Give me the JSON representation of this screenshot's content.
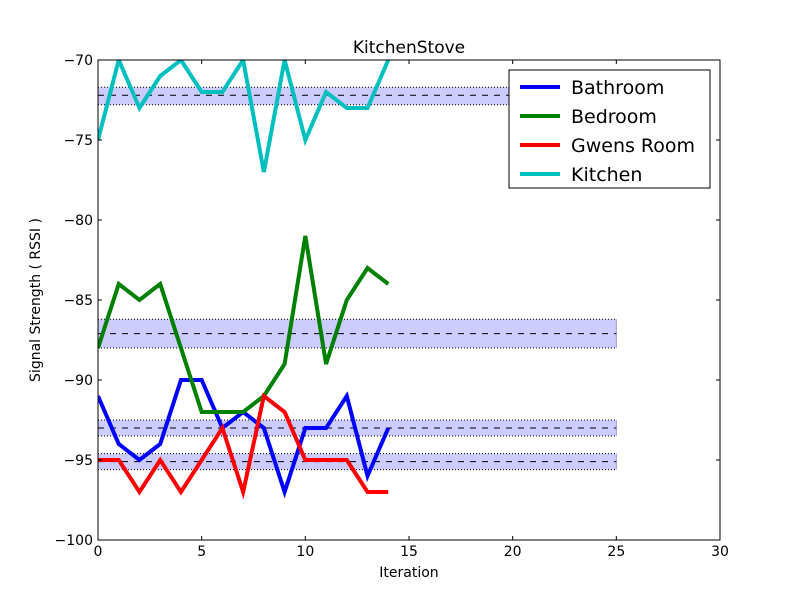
{
  "chart_data": {
    "type": "line",
    "title": "KitchenStove",
    "xlabel": "Iteration",
    "ylabel": "Signal Strength  ( RSSI )",
    "xlim": [
      0,
      30
    ],
    "ylim": [
      -100,
      -70
    ],
    "xticks": [
      0,
      5,
      10,
      15,
      20,
      25,
      30
    ],
    "yticks": [
      -70,
      -75,
      -80,
      -85,
      -90,
      -95,
      -100
    ],
    "grid": false,
    "legend_position": "top-right",
    "series": [
      {
        "name": "Bathroom",
        "color": "#0000ff",
        "x": [
          0,
          1,
          2,
          3,
          4,
          5,
          6,
          7,
          8,
          9,
          10,
          11,
          12,
          13,
          14
        ],
        "values": [
          -91,
          -94,
          -95,
          -94,
          -90,
          -90,
          -93,
          -92,
          -93,
          -97,
          -93,
          -93,
          -91,
          -96,
          -93
        ]
      },
      {
        "name": "Bedroom",
        "color": "#008000",
        "x": [
          0,
          1,
          2,
          3,
          4,
          5,
          6,
          7,
          8,
          9,
          10,
          11,
          12,
          13,
          14
        ],
        "values": [
          -88,
          -84,
          -85,
          -84,
          -88,
          -92,
          -92,
          -92,
          -91,
          -89,
          -81,
          -89,
          -85,
          -83,
          -84
        ]
      },
      {
        "name": "Gwens Room",
        "color": "#ff0000",
        "x": [
          0,
          1,
          2,
          3,
          4,
          5,
          6,
          7,
          8,
          9,
          10,
          11,
          12,
          13,
          14
        ],
        "values": [
          -95,
          -95,
          -97,
          -95,
          -97,
          -95,
          -93,
          -97,
          -91,
          -92,
          -95,
          -95,
          -95,
          -97,
          -97
        ]
      },
      {
        "name": "Kitchen",
        "color": "#00bfbf",
        "x": [
          0,
          1,
          2,
          3,
          4,
          5,
          6,
          7,
          8,
          9,
          10,
          11,
          12,
          13,
          14
        ],
        "values": [
          -75,
          -70,
          -73,
          -71,
          -70,
          -72,
          -72,
          -70,
          -77,
          -70,
          -75,
          -72,
          -73,
          -73,
          -70
        ]
      }
    ],
    "bands": [
      {
        "mean": -72.2,
        "low": -72.8,
        "high": -71.7,
        "x_range": [
          0,
          25
        ]
      },
      {
        "mean": -87.1,
        "low": -88.0,
        "high": -86.2,
        "x_range": [
          0,
          25
        ]
      },
      {
        "mean": -93.0,
        "low": -93.5,
        "high": -92.5,
        "x_range": [
          0,
          25
        ]
      },
      {
        "mean": -95.1,
        "low": -95.6,
        "high": -94.6,
        "x_range": [
          0,
          25
        ]
      }
    ],
    "band_fill": "#ccccff",
    "band_edge": "#9999cc"
  }
}
